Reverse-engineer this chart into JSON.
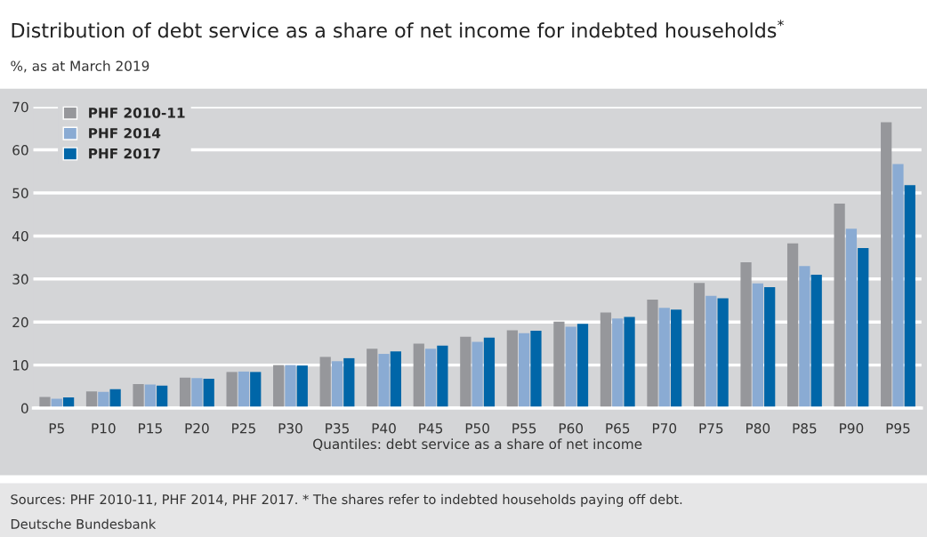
{
  "chart_data": {
    "type": "bar",
    "title": "Distribution of debt service as a share of net income for indebted households$^{*}$",
    "subtitle": "%, as at March 2019",
    "xlabel": "Quantiles: debt service as a share of net income",
    "categories": [
      "P5",
      "P10",
      "P15",
      "P20",
      "P25",
      "P30",
      "P35",
      "P40",
      "P45",
      "P50",
      "P55",
      "P60",
      "P65",
      "P70",
      "P75",
      "P80",
      "P85",
      "P90",
      "P95"
    ],
    "series": [
      {
        "name": "PHF 2010-11",
        "color": "#96979b",
        "values": [
          2.6,
          3.9,
          5.6,
          7.1,
          8.4,
          10.0,
          11.9,
          13.8,
          15.0,
          16.6,
          18.1,
          20.1,
          22.2,
          25.2,
          29.1,
          33.9,
          38.3,
          47.5,
          66.4
        ]
      },
      {
        "name": "PHF 2014",
        "color": "#8aabd3",
        "values": [
          2.2,
          3.8,
          5.5,
          7.0,
          8.5,
          10.0,
          10.9,
          12.6,
          13.8,
          15.4,
          17.4,
          18.9,
          20.8,
          23.3,
          26.1,
          29.0,
          33.0,
          41.7,
          56.7
        ]
      },
      {
        "name": "PHF 2017",
        "color": "#0066a8",
        "values": [
          2.5,
          4.4,
          5.2,
          6.8,
          8.4,
          9.9,
          11.6,
          13.2,
          14.5,
          16.4,
          18.0,
          19.6,
          21.2,
          22.9,
          25.5,
          28.1,
          31.0,
          37.2,
          51.8
        ]
      }
    ],
    "ylim": [
      0,
      70
    ],
    "yticks": [
      0,
      10,
      20,
      30,
      40,
      50,
      60,
      70
    ],
    "grid": "y",
    "legend": "top left",
    "annotations": [
      "Sources: PHF 2010-11, PHF 2014, PHF 2017. * The shares refer to indebted households paying off debt.",
      "Deutsche Bundesbank"
    ]
  }
}
